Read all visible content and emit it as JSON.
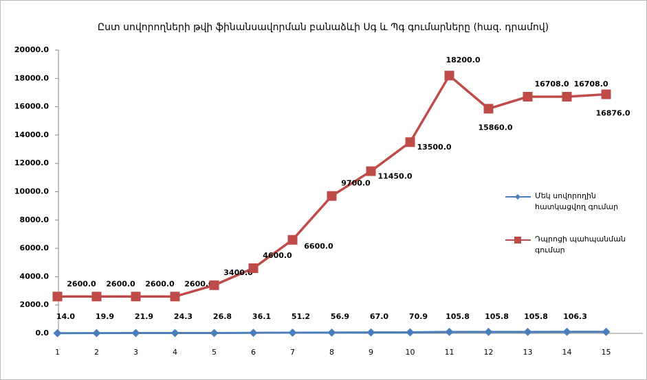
{
  "chart_data": {
    "type": "line",
    "title": "Ըստ սովորողների թվի ֆինանսավորման բանաձևի  Սգ և  Պգ  գումարները  (հազ. դրամով)",
    "categories": [
      "1",
      "2",
      "3",
      "4",
      "5",
      "6",
      "7",
      "8",
      "9",
      "10",
      "11",
      "12",
      "13",
      "14",
      "15"
    ],
    "series": [
      {
        "name": "Մեկ սովորողին հատկացվող գումար",
        "color": "#4a7ebb",
        "values": [
          14.0,
          19.9,
          21.9,
          24.3,
          26.8,
          36.1,
          51.2,
          56.9,
          67.0,
          70.9,
          105.8,
          105.8,
          105.8,
          106.3,
          106.3
        ],
        "value_labels": [
          "14.0",
          "19.9",
          "21.9",
          "24.3",
          "26.8",
          "36.1",
          "51.2",
          "56.9",
          "67.0",
          "70.9",
          "105.8",
          "105.8",
          "105.8",
          "106.3",
          null
        ]
      },
      {
        "name": "Դպրոցի պահպանման գումար",
        "color": "#be4b48",
        "values": [
          2600,
          2600,
          2600,
          2600,
          3400,
          4600,
          6600,
          9700,
          11450,
          13500,
          18200,
          15860,
          16708,
          16708,
          16876
        ],
        "value_labels": [
          "2600.0",
          "2600.0",
          "2600.0",
          "2600.0",
          "3400.0",
          "4600.0",
          "6600.0",
          "9700.0",
          "11450.0",
          "13500.0",
          "18200.0",
          "15860.0",
          "16708.0",
          "16708.0",
          "16876.0"
        ]
      }
    ],
    "ylim": [
      0,
      20000
    ],
    "yticks": [
      {
        "value": 0,
        "label": "0.0"
      },
      {
        "value": 2000,
        "label": "2000.0"
      },
      {
        "value": 4000,
        "label": "4000.0"
      },
      {
        "value": 6000,
        "label": "6000.0"
      },
      {
        "value": 8000,
        "label": "8000.0"
      },
      {
        "value": 10000,
        "label": "10000.0"
      },
      {
        "value": 12000,
        "label": "12000.0"
      },
      {
        "value": 14000,
        "label": "14000.0"
      },
      {
        "value": 16000,
        "label": "16000.0"
      },
      {
        "value": 18000,
        "label": "18000.0"
      },
      {
        "value": 20000,
        "label": "20000.0"
      }
    ],
    "grid": false,
    "legend": "right"
  }
}
